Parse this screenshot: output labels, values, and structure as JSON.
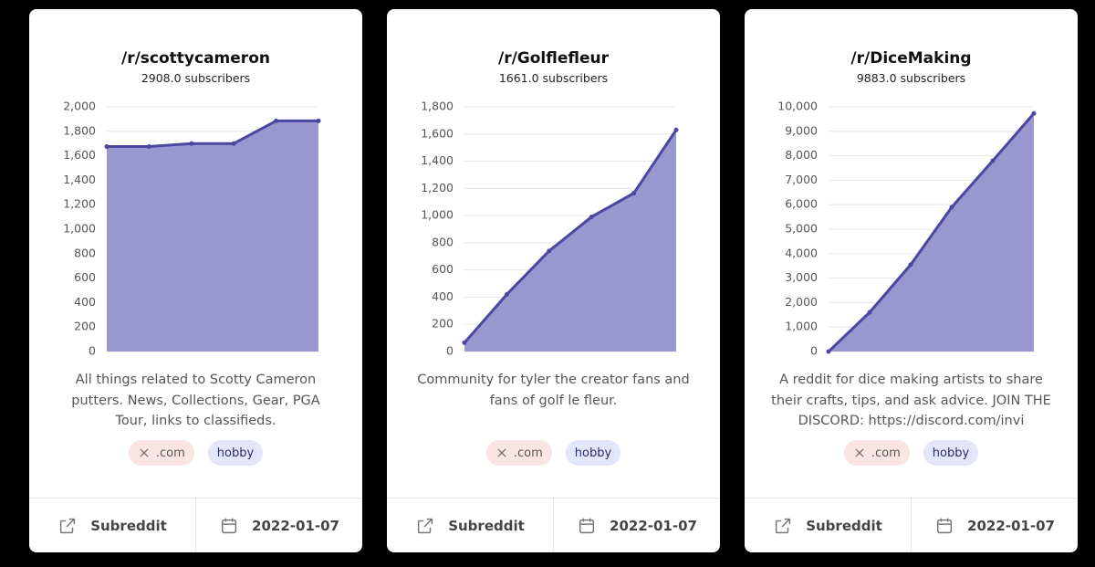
{
  "chart_data": [
    {
      "type": "area",
      "color": "#4b47a0",
      "fill": "#9a96d0",
      "values": [
        1675,
        1675,
        1700,
        1700,
        1885,
        1885
      ],
      "ylim": [
        0,
        2000
      ],
      "yticks": [
        0,
        200,
        400,
        600,
        800,
        {
          "value": 1000,
          "label": "1,000"
        },
        {
          "value": 1200,
          "label": "1,200"
        },
        {
          "value": 1400,
          "label": "1,400"
        },
        {
          "value": 1600,
          "label": "1,600"
        },
        {
          "value": 1800,
          "label": "1,800"
        },
        {
          "value": 2000,
          "label": "2,000"
        }
      ],
      "grid": true
    },
    {
      "type": "area",
      "color": "#4b47a0",
      "fill": "#9a96d0",
      "values": [
        65,
        420,
        740,
        990,
        1165,
        1630
      ],
      "ylim": [
        0,
        1800
      ],
      "yticks": [
        0,
        200,
        400,
        600,
        800,
        {
          "value": 1000,
          "label": "1,000"
        },
        {
          "value": 1200,
          "label": "1,200"
        },
        {
          "value": 1400,
          "label": "1,400"
        },
        {
          "value": 1600,
          "label": "1,600"
        },
        {
          "value": 1800,
          "label": "1,800"
        }
      ],
      "grid": true
    },
    {
      "type": "area",
      "color": "#4b47a0",
      "fill": "#9a96d0",
      "values": [
        0,
        1600,
        3550,
        5900,
        7800,
        9730
      ],
      "ylim": [
        0,
        10000
      ],
      "yticks": [
        0,
        {
          "value": 1000,
          "label": "1,000"
        },
        {
          "value": 2000,
          "label": "2,000"
        },
        {
          "value": 3000,
          "label": "3,000"
        },
        {
          "value": 4000,
          "label": "4,000"
        },
        {
          "value": 5000,
          "label": "5,000"
        },
        {
          "value": 6000,
          "label": "6,000"
        },
        {
          "value": 7000,
          "label": "7,000"
        },
        {
          "value": 8000,
          "label": "8,000"
        },
        {
          "value": 9000,
          "label": "9,000"
        },
        {
          "value": 10000,
          "label": "10,000"
        }
      ],
      "grid": true
    }
  ],
  "cards": [
    {
      "title": "/r/scottycameron",
      "subscribers": "2908.0 subscribers",
      "description": "All things related to Scotty Cameron putters. News, Collections, Gear, PGA Tour, links to classifieds.",
      "tags": [
        ".com",
        "hobby"
      ],
      "link": "Subreddit",
      "date": "2022-01-07"
    },
    {
      "title": "/r/Golflefleur",
      "subscribers": "1661.0 subscribers",
      "description": "Community for tyler the creator fans and fans of golf le fleur.",
      "tags": [
        ".com",
        "hobby"
      ],
      "link": "Subreddit",
      "date": "2022-01-07"
    },
    {
      "title": "/r/DiceMaking",
      "subscribers": "9883.0 subscribers",
      "description": "A reddit for dice making artists to share their crafts, tips, and ask advice. JOIN THE DISCORD: https://discord.com/invi",
      "tags": [
        ".com",
        "hobby"
      ],
      "link": "Subreddit",
      "date": "2022-01-07"
    }
  ]
}
